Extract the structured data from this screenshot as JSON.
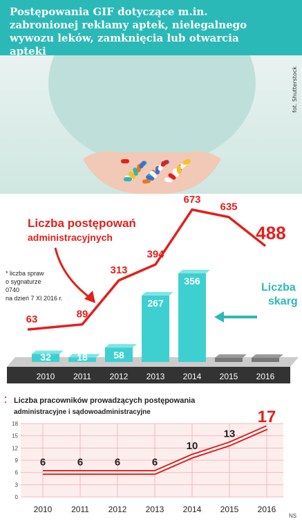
{
  "header": {
    "title": "Postępowania GIF dotyczące m.in. zabronionej reklamy aptek, nielegalnego wywozu leków, zamknięcia lub otwarcia apteki"
  },
  "photo_credit": "fot. Shutterstock",
  "footnote": [
    "* liczba spraw",
    "o sygnaturze",
    "0740",
    "na dzień 7 XI 2016 r."
  ],
  "source": "NS",
  "colors": {
    "teal": "#2bb9b7",
    "bar_teal": "#3ed0d0",
    "red": "#e3201b",
    "dark_band": "#333333"
  },
  "chart_data": [
    {
      "type": "bar",
      "categories": [
        "2010",
        "2011",
        "2012",
        "2013",
        "2014",
        "2015",
        "2016"
      ],
      "series": [
        {
          "name": "Liczba postępowań administracyjnych",
          "type": "line",
          "values": [
            63,
            89,
            313,
            394,
            673,
            635,
            488
          ],
          "labels": [
            "63",
            "89",
            "313",
            "394",
            "673",
            "635",
            "488"
          ]
        },
        {
          "name": "Liczba skarg",
          "type": "bar",
          "values": [
            32,
            18,
            58,
            267,
            356,
            null,
            null
          ],
          "labels": [
            "32",
            "18",
            "58",
            "267",
            "356",
            "",
            ""
          ]
        }
      ],
      "title_line1": "Liczba postępowań",
      "title_line2": "administracyjnych",
      "bar_label_line1": "Liczba",
      "bar_label_line2": "skarg"
    },
    {
      "type": "line",
      "title_line1": "Liczba pracowników prowadzących postępowania",
      "title_line2": "administracyjne i sądowoadministracyjne",
      "categories": [
        "2010",
        "2011",
        "2012",
        "2013",
        "2014",
        "2015",
        "2016"
      ],
      "series": [
        {
          "values": [
            6,
            6,
            6,
            6,
            10,
            13,
            17
          ],
          "labels": [
            "6",
            "6",
            "6",
            "6",
            "10",
            "13",
            "17"
          ]
        }
      ],
      "y_ticks": [
        "0",
        "3",
        "6",
        "9",
        "12",
        "15",
        "18"
      ],
      "ylim": [
        0,
        18
      ],
      "grid": true
    }
  ]
}
